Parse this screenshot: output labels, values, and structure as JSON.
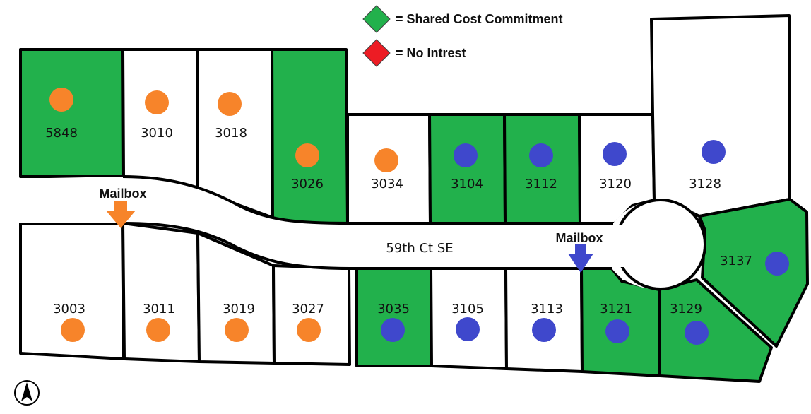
{
  "colors": {
    "shared": "#22b14c",
    "none": "#ffffff",
    "no_interest": "#ed1c24",
    "orange": "#f7842a",
    "blue": "#3f48cc",
    "outline": "#000000"
  },
  "legend": {
    "shared_label": "= Shared Cost Commitment",
    "no_interest_label": "= No Intrest"
  },
  "street": {
    "name": "59th Ct SE"
  },
  "mailboxes": [
    {
      "label": "Mailbox",
      "color": "orange"
    },
    {
      "label": "Mailbox",
      "color": "blue"
    }
  ],
  "compass_icon": "north-arrow-icon",
  "lots": {
    "5848": {
      "number": "5848",
      "status": "shared",
      "dot": "orange"
    },
    "3010": {
      "number": "3010",
      "status": "none",
      "dot": "orange"
    },
    "3018": {
      "number": "3018",
      "status": "none",
      "dot": "orange"
    },
    "3026": {
      "number": "3026",
      "status": "shared",
      "dot": "orange"
    },
    "3034": {
      "number": "3034",
      "status": "none",
      "dot": "orange"
    },
    "3104": {
      "number": "3104",
      "status": "shared",
      "dot": "blue"
    },
    "3112": {
      "number": "3112",
      "status": "shared",
      "dot": "blue"
    },
    "3120": {
      "number": "3120",
      "status": "none",
      "dot": "blue"
    },
    "3128": {
      "number": "3128",
      "status": "none",
      "dot": "blue"
    },
    "3137": {
      "number": "3137",
      "status": "shared",
      "dot": "blue"
    },
    "3003": {
      "number": "3003",
      "status": "none",
      "dot": "orange"
    },
    "3011": {
      "number": "3011",
      "status": "none",
      "dot": "orange"
    },
    "3019": {
      "number": "3019",
      "status": "none",
      "dot": "orange"
    },
    "3027": {
      "number": "3027",
      "status": "none",
      "dot": "orange"
    },
    "3035": {
      "number": "3035",
      "status": "shared",
      "dot": "blue"
    },
    "3105": {
      "number": "3105",
      "status": "none",
      "dot": "blue"
    },
    "3113": {
      "number": "3113",
      "status": "none",
      "dot": "blue"
    },
    "3121": {
      "number": "3121",
      "status": "shared",
      "dot": "blue"
    },
    "3129": {
      "number": "3129",
      "status": "shared",
      "dot": "blue"
    }
  }
}
